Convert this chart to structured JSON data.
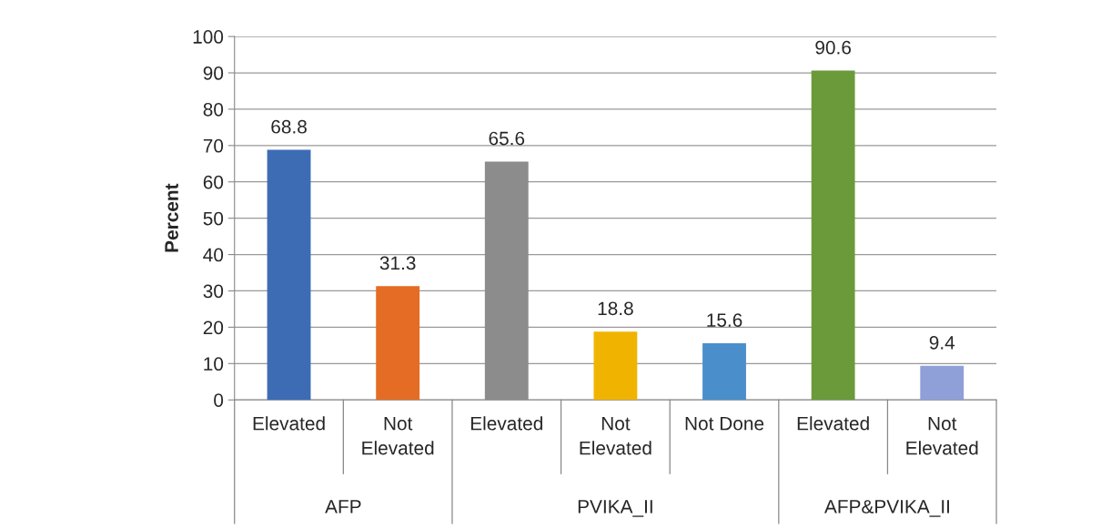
{
  "chart_data": {
    "type": "bar",
    "ylabel": "Percent",
    "categories": [
      "Elevated",
      "Not\nElevated",
      "Elevated",
      "Not\nElevated",
      "Not Done",
      "Elevated",
      "Not\nElevated"
    ],
    "values": [
      68.8,
      31.3,
      65.6,
      18.8,
      15.6,
      90.6,
      9.4
    ],
    "colors": [
      "#3d6cb5",
      "#e46c24",
      "#8c8c8c",
      "#f0b400",
      "#4a8fcb",
      "#6a9a3a",
      "#8f9fd8"
    ],
    "ylim": [
      0,
      100
    ],
    "yticks": [
      0,
      10,
      20,
      30,
      40,
      50,
      60,
      70,
      80,
      90,
      100
    ],
    "grid": "y",
    "data_labels": true,
    "annotations": [
      "AFP",
      "PVIKA_II",
      "AFP&PVIKA_II"
    ]
  }
}
